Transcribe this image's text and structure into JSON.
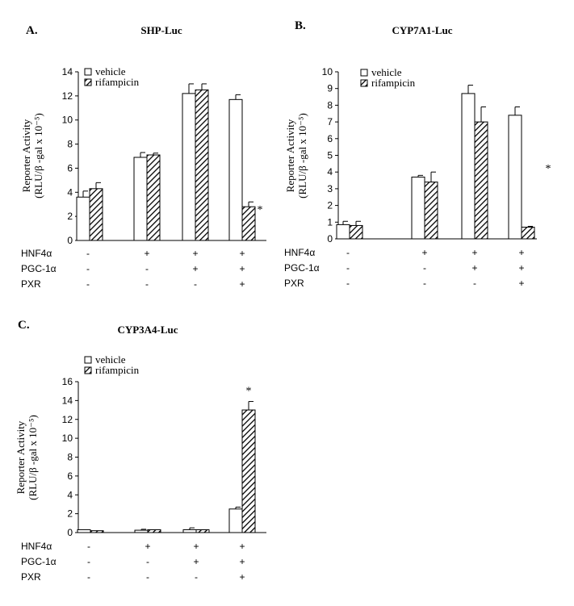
{
  "colors": {
    "axis": "#000000",
    "vehicle_fill": "#ffffff",
    "rifampicin_hatch": "#000000",
    "background": "#ffffff"
  },
  "conditions": {
    "labels": [
      "HNF4α",
      "PGC-1α",
      "PXR"
    ],
    "signs": [
      [
        "-",
        "+",
        "+",
        "+"
      ],
      [
        "-",
        "-",
        "+",
        "+"
      ],
      [
        "-",
        "-",
        "-",
        "+"
      ]
    ]
  },
  "chart_data": [
    {
      "panel": "A.",
      "type": "bar",
      "title": "SHP-Luc",
      "ylabel": [
        "Reporter Activity",
        "(RLU/β -gal x 10⁻⁵)"
      ],
      "ylim": [
        0,
        14
      ],
      "yticks": [
        "0",
        "2",
        "4",
        "6",
        "8",
        "10",
        "12",
        "14"
      ],
      "legend_position": "top-left",
      "categories": [
        "",
        "",
        "",
        ""
      ],
      "series": [
        {
          "name": "vehicle",
          "values": [
            3.6,
            6.9,
            12.2,
            11.7
          ],
          "errors": [
            0.5,
            0.4,
            0.8,
            0.4
          ]
        },
        {
          "name": "rifampicin",
          "values": [
            4.3,
            7.1,
            12.5,
            2.8
          ],
          "errors": [
            0.5,
            0.15,
            0.5,
            0.4
          ]
        }
      ],
      "annotations": [
        {
          "text": "*",
          "category_index": 3
        }
      ]
    },
    {
      "panel": "B.",
      "type": "bar",
      "title": "CYP7A1-Luc",
      "ylabel": [
        "Reporter Activity",
        "(RLU/β -gal x 10⁻⁵)"
      ],
      "ylim": [
        0,
        10
      ],
      "yticks": [
        "0",
        "1",
        "2",
        "3",
        "4",
        "5",
        "6",
        "7",
        "8",
        "9",
        "10"
      ],
      "legend_position": "top-left",
      "categories": [
        "",
        "",
        "",
        ""
      ],
      "series": [
        {
          "name": "vehicle",
          "values": [
            0.85,
            3.7,
            8.7,
            7.4
          ],
          "errors": [
            0.2,
            0.1,
            0.5,
            0.5
          ]
        },
        {
          "name": "rifampicin",
          "values": [
            0.8,
            3.4,
            7.0,
            0.7
          ],
          "errors": [
            0.25,
            0.6,
            0.9,
            0.05
          ]
        }
      ],
      "annotations": [
        {
          "text": "*",
          "category_index": 3,
          "outside_right": true
        }
      ]
    },
    {
      "panel": "C.",
      "type": "bar",
      "title": "CYP3A4-Luc",
      "ylabel": [
        "Reporter Activity",
        "(RLU/β -gal x 10⁻⁵)"
      ],
      "ylim": [
        0,
        16
      ],
      "yticks": [
        "0",
        "2",
        "4",
        "6",
        "8",
        "10",
        "12",
        "14",
        "16"
      ],
      "legend_position": "top-left",
      "categories": [
        "",
        "",
        "",
        ""
      ],
      "series": [
        {
          "name": "vehicle",
          "values": [
            0.3,
            0.25,
            0.3,
            2.5
          ],
          "errors": [
            0.0,
            0.1,
            0.2,
            0.2
          ]
        },
        {
          "name": "rifampicin",
          "values": [
            0.2,
            0.3,
            0.3,
            13.0
          ],
          "errors": [
            0.0,
            0.0,
            0.0,
            0.9
          ]
        }
      ],
      "annotations": [
        {
          "text": "*",
          "category_index": 3
        }
      ]
    }
  ]
}
